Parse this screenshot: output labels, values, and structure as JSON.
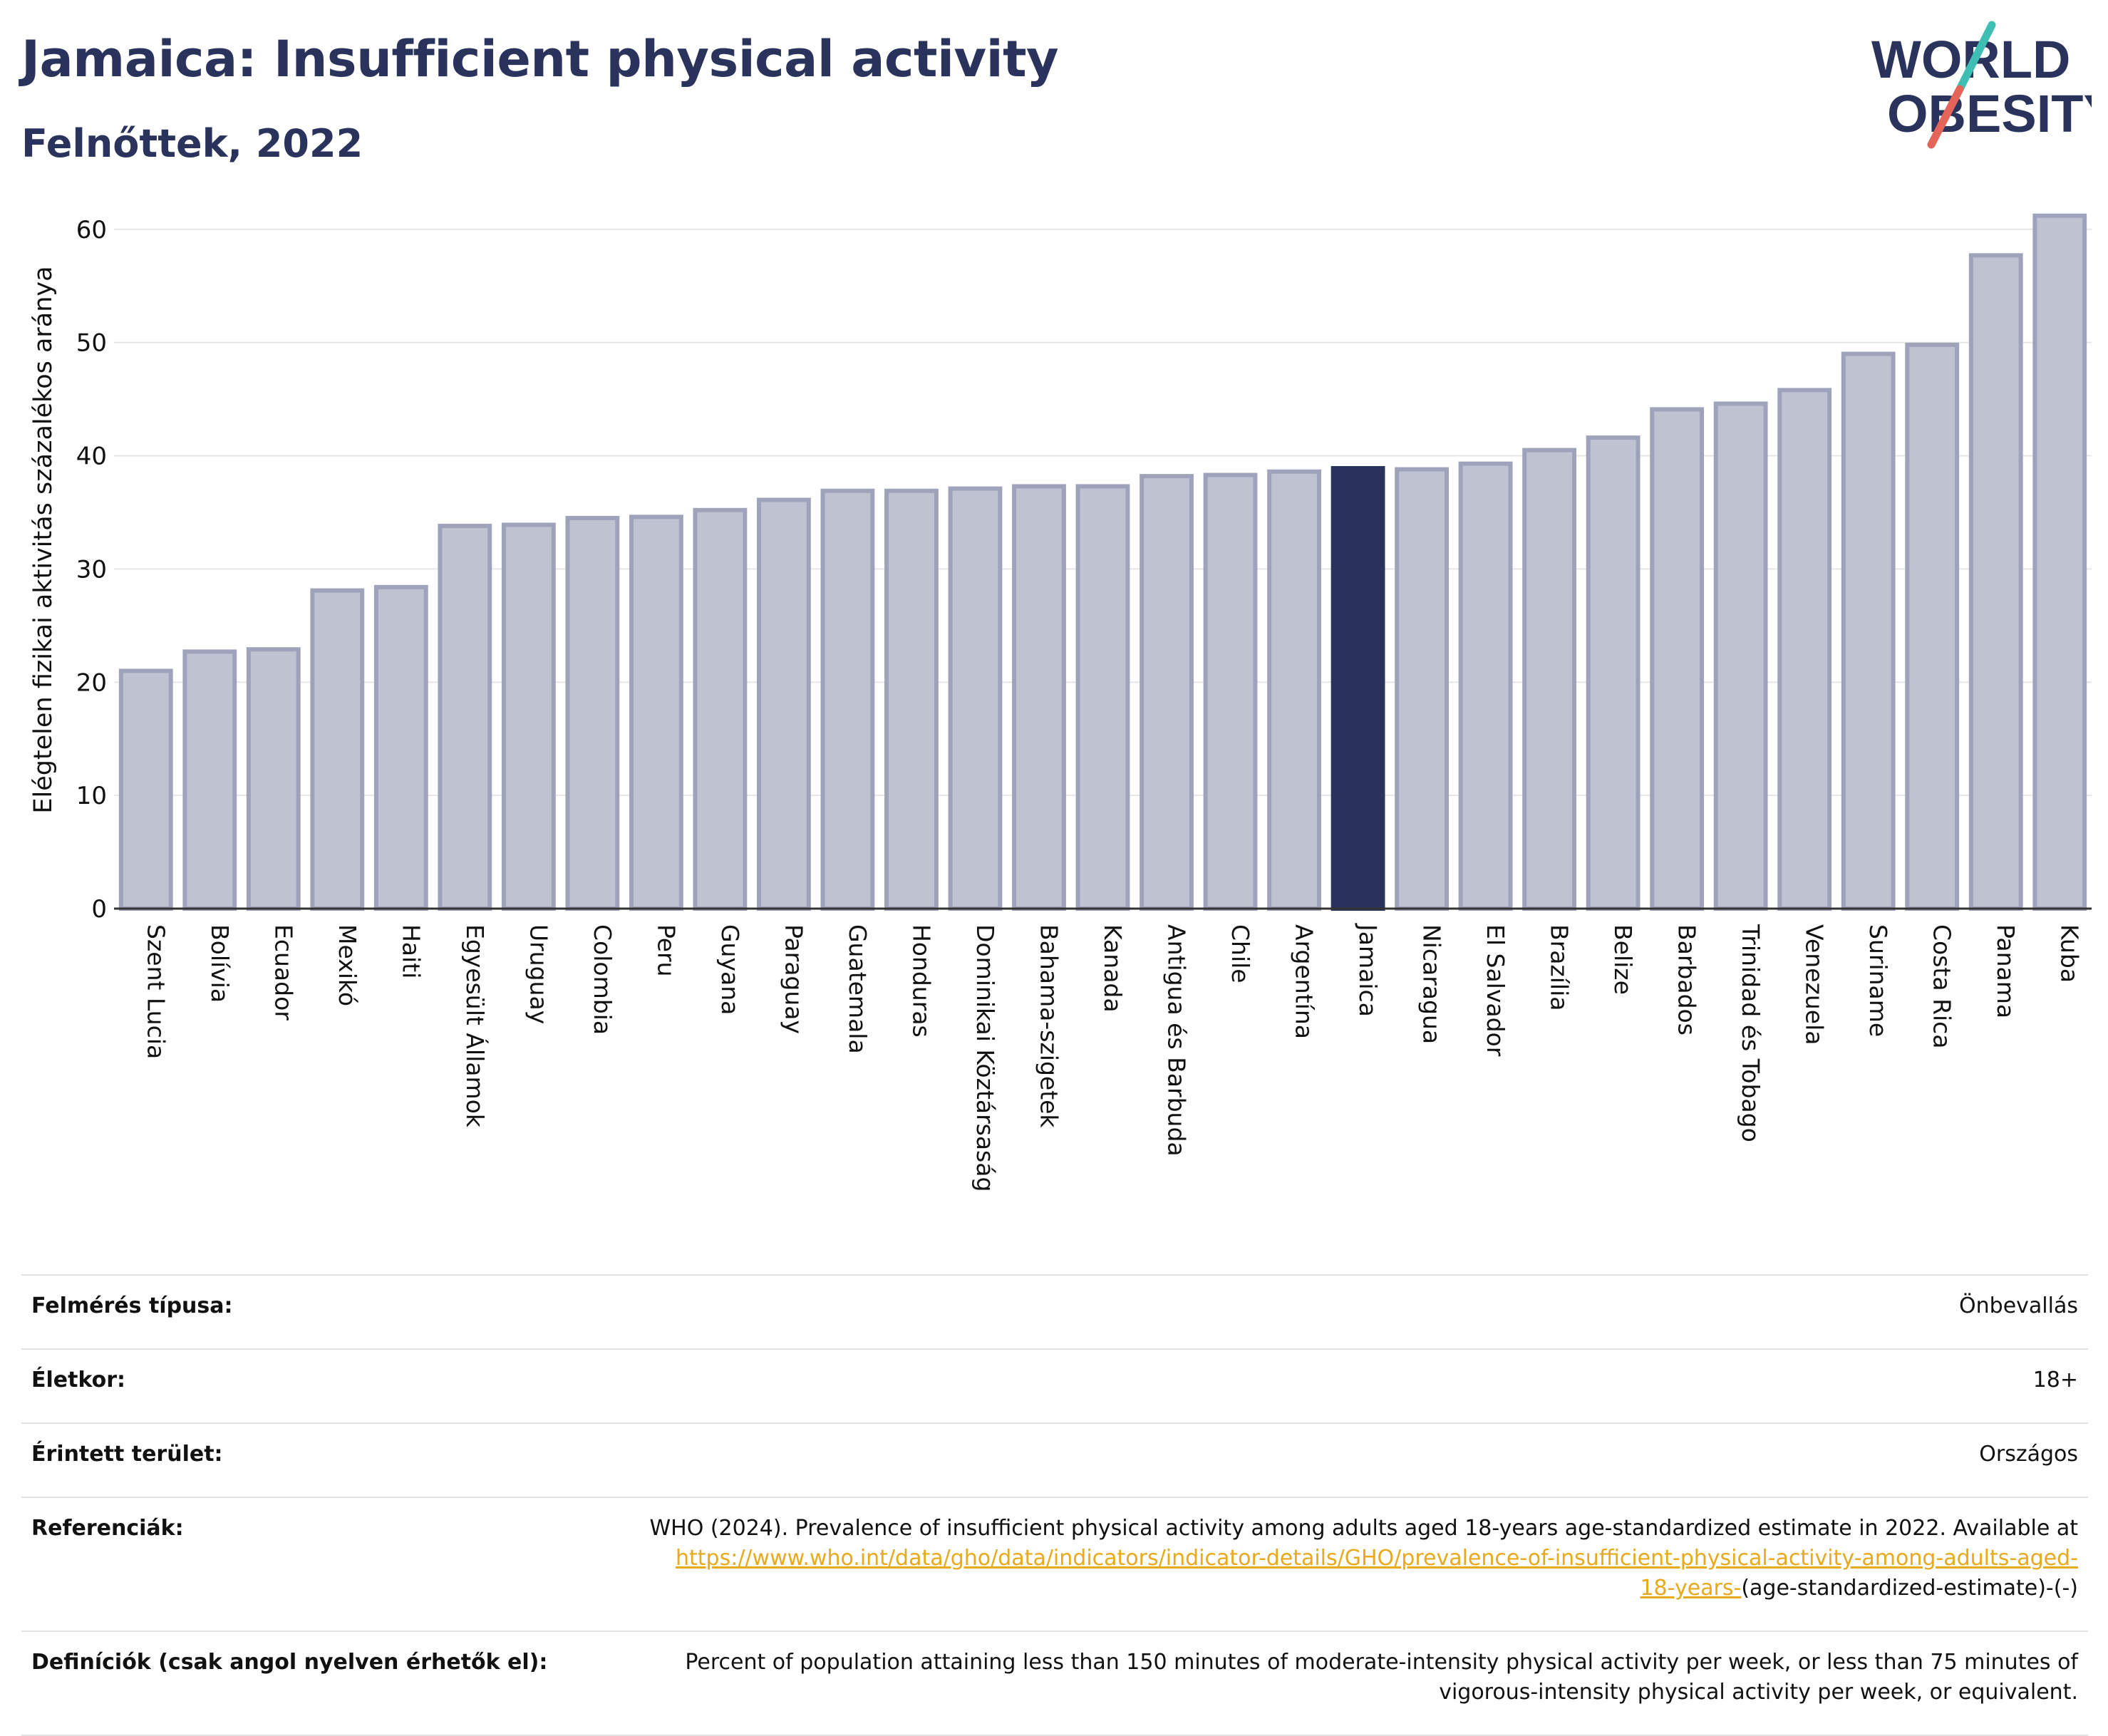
{
  "header": {
    "title": "Jamaica: Insufficient physical activity",
    "subtitle": "Felnőttek, 2022"
  },
  "logo": {
    "line1": "WORLD",
    "line2": "OBESITY",
    "colors": {
      "text": "#2a335c",
      "slash_teal": "#3fbfb4",
      "slash_red": "#e5645a"
    }
  },
  "colors": {
    "highlight": "#2a335c",
    "bar_fill": "#bfc2d0",
    "bar_stroke": "#9ea3bb",
    "grid": "#e6e6e6",
    "link": "#e8a91a"
  },
  "chart_data": {
    "type": "bar",
    "title": "Jamaica: Insufficient physical activity",
    "subtitle": "Felnőttek, 2022",
    "xlabel": "",
    "ylabel": "Elégtelen fizikai aktivitás százalékos aránya",
    "ylim": [
      0,
      62
    ],
    "yticks": [
      0,
      10,
      20,
      30,
      40,
      50,
      60
    ],
    "grid": true,
    "highlight": "Jamaica",
    "categories": [
      "Szent Lucia",
      "Bolívia",
      "Ecuador",
      "Mexikó",
      "Haiti",
      "Egyesült Államok",
      "Uruguay",
      "Colombia",
      "Peru",
      "Guyana",
      "Paraguay",
      "Guatemala",
      "Honduras",
      "Dominikai Köztársaság",
      "Bahama-szigetek",
      "Kanada",
      "Antigua és Barbuda",
      "Chile",
      "Argentína",
      "Jamaica",
      "Nicaragua",
      "El Salvador",
      "Brazília",
      "Belize",
      "Barbados",
      "Trinidad és Tobago",
      "Venezuela",
      "Suriname",
      "Costa Rica",
      "Panama",
      "Kuba"
    ],
    "values": [
      21.0,
      22.7,
      22.9,
      28.1,
      28.4,
      33.8,
      33.9,
      34.5,
      34.6,
      35.2,
      36.1,
      36.9,
      36.9,
      37.1,
      37.3,
      37.3,
      38.2,
      38.3,
      38.6,
      38.9,
      38.8,
      39.3,
      40.5,
      41.6,
      44.1,
      44.6,
      45.8,
      49.0,
      49.8,
      57.7,
      61.2
    ]
  },
  "info": {
    "rows": [
      {
        "label": "Felmérés típusa:",
        "value": "Önbevallás"
      },
      {
        "label": "Életkor:",
        "value": "18+"
      },
      {
        "label": "Érintett terület:",
        "value": "Országos"
      }
    ],
    "references": {
      "label": "Referenciák:",
      "text": "WHO (2024). Prevalence of insufficient physical activity among adults aged 18-years age-standardized estimate in 2022. Available at",
      "link_line1": "https://www.who.int/data/gho/data/indicators/indicator-details/GHO/prevalence-of-insufficient-physical-activity-among-adults-aged-",
      "link_line2": "18-years-",
      "suffix": "(age-standardized-estimate)-(-)"
    },
    "definitions": {
      "label": "Definíciók (csak angol nyelven érhetők el):",
      "line1": "Percent of population attaining less than 150 minutes of moderate-intensity physical activity per week, or less than 75 minutes of",
      "line2": "vigorous-intensity physical activity per week, or equivalent."
    }
  }
}
